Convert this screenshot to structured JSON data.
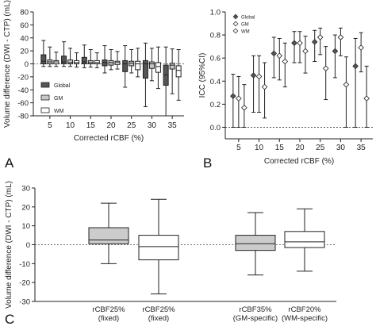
{
  "panel_labels": {
    "a": "A",
    "b": "B",
    "c": "C"
  },
  "colors": {
    "global": "#555555",
    "gm": "#c8c8c8",
    "wm": "#ffffff",
    "stroke": "#222222",
    "c_gray": "#cccccc"
  },
  "chart_data": [
    {
      "id": "A",
      "type": "boxplot",
      "xlabel": "Corrected rCBF (%)",
      "ylabel": "Volume difference (DWI - CTP) (mL)",
      "ylim": [
        -80,
        80
      ],
      "yticks": [
        -80,
        -60,
        -40,
        -20,
        0,
        20,
        40,
        60,
        80
      ],
      "categories": [
        "5",
        "10",
        "15",
        "20",
        "25",
        "30",
        "35"
      ],
      "legend": {
        "position": "lower-left",
        "entries": [
          "Global",
          "GM",
          "WM"
        ]
      },
      "series": [
        {
          "name": "Global",
          "boxes": [
            {
              "min": -4,
              "q1": 0,
              "median": 4,
              "q3": 14,
              "max": 36
            },
            {
              "min": -4,
              "q1": 0,
              "median": 3,
              "q3": 12,
              "max": 34
            },
            {
              "min": -6,
              "q1": 0,
              "median": 3,
              "q3": 10,
              "max": 29
            },
            {
              "min": -14,
              "q1": -3,
              "median": 2,
              "q3": 6,
              "max": 28
            },
            {
              "min": -36,
              "q1": -12,
              "median": 0,
              "q3": 5,
              "max": 28
            },
            {
              "min": -66,
              "q1": -22,
              "median": 0,
              "q3": 5,
              "max": 32
            },
            {
              "min": -80,
              "q1": -33,
              "median": -17,
              "q3": -2,
              "max": 26
            }
          ]
        },
        {
          "name": "GM",
          "boxes": [
            {
              "min": -4,
              "q1": 0,
              "median": 3,
              "q3": 6,
              "max": 26
            },
            {
              "min": -4,
              "q1": 0,
              "median": 2,
              "q3": 6,
              "max": 24
            },
            {
              "min": -5,
              "q1": 0,
              "median": 2,
              "q3": 5,
              "max": 22
            },
            {
              "min": -9,
              "q1": -2,
              "median": 2,
              "q3": 5,
              "max": 22
            },
            {
              "min": -14,
              "q1": -3,
              "median": 1,
              "q3": 4,
              "max": 22
            },
            {
              "min": -26,
              "q1": -7,
              "median": 0,
              "q3": 3,
              "max": 24
            },
            {
              "min": -46,
              "q1": -8,
              "median": -2,
              "q3": 1,
              "max": 23
            }
          ]
        },
        {
          "name": "WM",
          "boxes": [
            {
              "min": -4,
              "q1": 0,
              "median": 3,
              "q3": 5,
              "max": 18
            },
            {
              "min": -5,
              "q1": 0,
              "median": 2,
              "q3": 5,
              "max": 17
            },
            {
              "min": -6,
              "q1": 0,
              "median": 2,
              "q3": 5,
              "max": 17
            },
            {
              "min": -8,
              "q1": -1,
              "median": 2,
              "q3": 4,
              "max": 19
            },
            {
              "min": -20,
              "q1": -9,
              "median": 0,
              "q3": 4,
              "max": 24
            },
            {
              "min": -38,
              "q1": -13,
              "median": -4,
              "q3": 2,
              "max": 26
            },
            {
              "min": -56,
              "q1": -20,
              "median": -10,
              "q3": -3,
              "max": 22
            }
          ]
        }
      ]
    },
    {
      "id": "B",
      "type": "errorbar",
      "xlabel": "Corrected rCBF (%)",
      "ylabel": "ICC (95%CI)",
      "ylim": [
        -0.1,
        1.0
      ],
      "yticks": [
        0.0,
        0.2,
        0.4,
        0.6,
        0.8,
        1.0
      ],
      "categories": [
        "5",
        "10",
        "15",
        "20",
        "25",
        "30",
        "35"
      ],
      "legend": {
        "position": "top-left",
        "entries": [
          "Global",
          "GM",
          "WM"
        ]
      },
      "series": [
        {
          "name": "Global",
          "marker": "diamond-filled",
          "points": [
            {
              "value": 0.27,
              "lo": 0.0,
              "hi": 0.46
            },
            {
              "value": 0.45,
              "lo": 0.13,
              "hi": 0.62
            },
            {
              "value": 0.64,
              "lo": 0.43,
              "hi": 0.78
            },
            {
              "value": 0.73,
              "lo": 0.56,
              "hi": 0.83
            },
            {
              "value": 0.74,
              "lo": 0.57,
              "hi": 0.84
            },
            {
              "value": 0.66,
              "lo": 0.43,
              "hi": 0.8
            },
            {
              "value": 0.53,
              "lo": 0.0,
              "hi": 0.77
            }
          ]
        },
        {
          "name": "GM",
          "marker": "diamond-open",
          "points": [
            {
              "value": 0.25,
              "lo": 0.0,
              "hi": 0.44
            },
            {
              "value": 0.44,
              "lo": 0.13,
              "hi": 0.62
            },
            {
              "value": 0.62,
              "lo": 0.41,
              "hi": 0.77
            },
            {
              "value": 0.73,
              "lo": 0.56,
              "hi": 0.83
            },
            {
              "value": 0.78,
              "lo": 0.63,
              "hi": 0.86
            },
            {
              "value": 0.78,
              "lo": 0.62,
              "hi": 0.86
            },
            {
              "value": 0.69,
              "lo": 0.48,
              "hi": 0.82
            }
          ]
        },
        {
          "name": "WM",
          "marker": "diamond-open",
          "points": [
            {
              "value": 0.17,
              "lo": 0.0,
              "hi": 0.37
            },
            {
              "value": 0.35,
              "lo": 0.08,
              "hi": 0.56
            },
            {
              "value": 0.57,
              "lo": 0.35,
              "hi": 0.73
            },
            {
              "value": 0.66,
              "lo": 0.47,
              "hi": 0.79
            },
            {
              "value": 0.51,
              "lo": 0.24,
              "hi": 0.7
            },
            {
              "value": 0.37,
              "lo": 0.0,
              "hi": 0.61
            },
            {
              "value": 0.25,
              "lo": 0.0,
              "hi": 0.53
            }
          ]
        }
      ]
    },
    {
      "id": "C",
      "type": "boxplot",
      "xlabel": "",
      "ylabel": "Volume difference (DWI - CTP) (mL)",
      "ylim": [
        -30,
        30
      ],
      "yticks": [
        -30,
        -20,
        -10,
        0,
        10,
        20,
        30
      ],
      "categories": [
        "rCBF25%\n(fixed)",
        "rCBF25%\n(fixed)",
        "rCBF35%\n(GM-specific)",
        "rCBF20%\n(WM-specific)"
      ],
      "boxes": [
        {
          "fill": "gray",
          "min": -10,
          "q1": 0.5,
          "median": 2.5,
          "q3": 9,
          "max": 22
        },
        {
          "fill": "white",
          "min": -26,
          "q1": -8,
          "median": -1,
          "q3": 5,
          "max": 24
        },
        {
          "fill": "gray",
          "min": -16,
          "q1": -3,
          "median": 0.5,
          "q3": 5,
          "max": 17
        },
        {
          "fill": "white",
          "min": -14,
          "q1": -1.5,
          "median": 1.5,
          "q3": 7,
          "max": 19
        }
      ]
    }
  ]
}
